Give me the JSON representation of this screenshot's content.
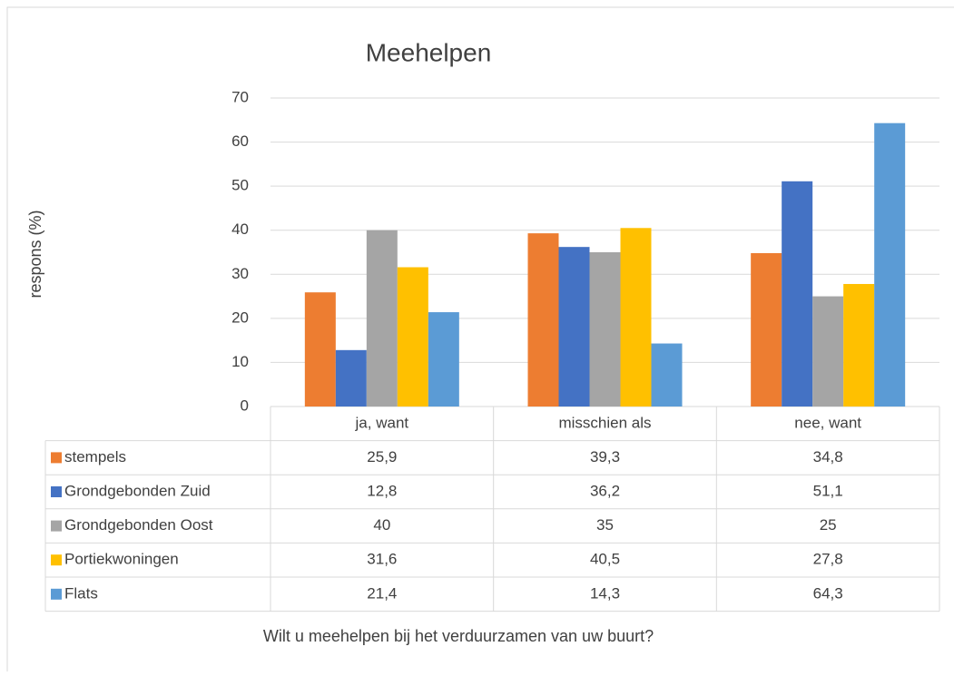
{
  "chart_data": {
    "type": "bar",
    "title": "Meehelpen",
    "y_label": "respons (%)",
    "x_label": "Wilt u meehelpen bij het verduurzamen van uw buurt?",
    "categories": [
      "ja, want",
      "misschien als",
      "nee, want"
    ],
    "series": [
      {
        "name": "stempels",
        "color": "#ed7d31",
        "values": [
          25.9,
          39.3,
          34.8
        ],
        "value_labels": [
          "25,9",
          "39,3",
          "34,8"
        ]
      },
      {
        "name": "Grondgebonden Zuid",
        "color": "#4472c4",
        "values": [
          12.8,
          36.2,
          51.1
        ],
        "value_labels": [
          "12,8",
          "36,2",
          "51,1"
        ]
      },
      {
        "name": "Grondgebonden Oost",
        "color": "#a5a5a5",
        "values": [
          40,
          35,
          25
        ],
        "value_labels": [
          "40",
          "35",
          "25"
        ]
      },
      {
        "name": "Portiekwoningen",
        "color": "#ffc000",
        "values": [
          31.6,
          40.5,
          27.8
        ],
        "value_labels": [
          "31,6",
          "40,5",
          "27,8"
        ]
      },
      {
        "name": "Flats",
        "color": "#5b9bd5",
        "values": [
          21.4,
          14.3,
          64.3
        ],
        "value_labels": [
          "21,4",
          "14,3",
          "64,3"
        ]
      }
    ],
    "ylim": [
      0,
      70
    ],
    "yticks": [
      0,
      10,
      20,
      30,
      40,
      50,
      60,
      70
    ],
    "grid": true
  }
}
